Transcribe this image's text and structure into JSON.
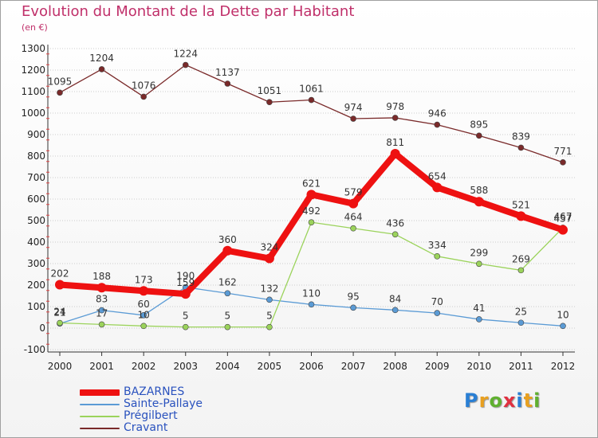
{
  "header": {
    "title": "Evolution du Montant de la Dette par Habitant",
    "subtitle": "(en €)"
  },
  "logo": {
    "text": "Proxiti",
    "letter_colors": [
      "#2a7fd4",
      "#e8a020",
      "#60b030",
      "#e03040",
      "#2a7fd4",
      "#e8a020",
      "#60b030"
    ]
  },
  "chart_data": {
    "type": "line",
    "title": "Evolution du Montant de la Dette par Habitant",
    "subtitle": "(en €)",
    "xlabel": "",
    "ylabel": "",
    "x": [
      "2000",
      "2001",
      "2002",
      "2003",
      "2004",
      "2005",
      "2006",
      "2007",
      "2008",
      "2009",
      "2010",
      "2011",
      "2012"
    ],
    "ylim": [
      -100,
      1300
    ],
    "yticks": [
      -100,
      0,
      100,
      200,
      300,
      400,
      500,
      600,
      700,
      800,
      900,
      1000,
      1100,
      1200,
      1300
    ],
    "grid": "horizontal",
    "legend_position": "bottom-left",
    "series": [
      {
        "name": "Cravant",
        "color": "#7a2a2a",
        "values": [
          1095,
          1204,
          1076,
          1224,
          1137,
          1051,
          1061,
          974,
          978,
          946,
          895,
          839,
          771
        ]
      },
      {
        "name": "Sainte-Pallaye",
        "color": "#5b9bd5",
        "values": [
          21,
          83,
          60,
          190,
          162,
          132,
          110,
          95,
          84,
          70,
          41,
          25,
          10
        ]
      },
      {
        "name": "Prégilbert",
        "color": "#9bd35b",
        "values": [
          24,
          17,
          10,
          5,
          5,
          5,
          492,
          464,
          436,
          334,
          299,
          269,
          467
        ]
      },
      {
        "name": "BAZARNES",
        "color": "#ee1111",
        "values": [
          202,
          188,
          173,
          159,
          360,
          324,
          621,
          579,
          811,
          654,
          588,
          521,
          457
        ]
      }
    ],
    "legend_order": [
      "BAZARNES",
      "Sainte-Pallaye",
      "Prégilbert",
      "Cravant"
    ]
  }
}
